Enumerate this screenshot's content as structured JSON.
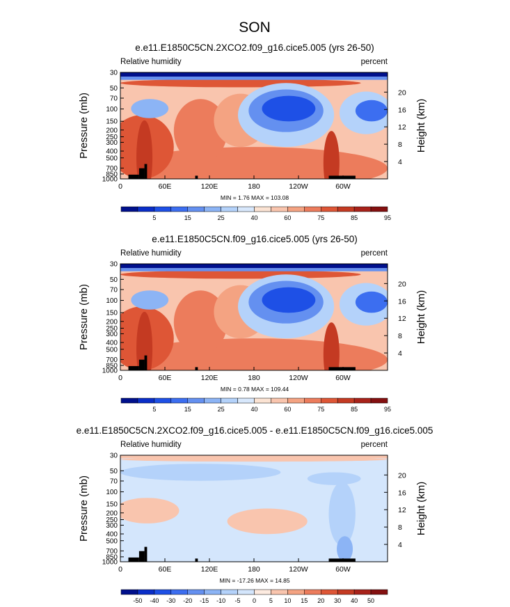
{
  "page": {
    "season_title": "SON"
  },
  "colors": {
    "abs_palette": [
      "#00108c",
      "#0a2ec8",
      "#1e50e6",
      "#3c6ef0",
      "#6490f0",
      "#8cb4f5",
      "#b4d2fa",
      "#d8e8fc",
      "#fbe3d3",
      "#f9c5ae",
      "#f4a382",
      "#ec7c5c",
      "#de5636",
      "#c43a22",
      "#a8221a",
      "#841010"
    ],
    "diff_palette": [
      "#00108c",
      "#0a2ec8",
      "#1e50e6",
      "#3c6ef0",
      "#6490f0",
      "#8cb4f5",
      "#b4d2fa",
      "#d4e6fc",
      "#fdebe0",
      "#f9c5ae",
      "#f4a382",
      "#ec7c5c",
      "#de5636",
      "#c43a22",
      "#a8221a",
      "#841010"
    ],
    "terrain": "#000000"
  },
  "chart_data": [
    {
      "type": "heatmap",
      "title": "e.e11.E1850C5CN.2XCO2.f09_g16.cice5.005 (yrs 26-50)",
      "left_label": "Relative humidity",
      "right_label": "percent",
      "ylabel": "Pressure (mb)",
      "y2label": "Height (km)",
      "xticks": [
        "0",
        "60E",
        "120E",
        "180",
        "120W",
        "60W"
      ],
      "yticks": [
        "30",
        "50",
        "70",
        "100",
        "150",
        "200",
        "250",
        "300",
        "400",
        "500",
        "700",
        "850",
        "1000"
      ],
      "y2ticks": [
        "20",
        "16",
        "12",
        "8",
        "4"
      ],
      "stats": "MIN =   1.76  MAX = 103.08",
      "colorbar_labels": [
        "5",
        "15",
        "25",
        "40",
        "60",
        "75",
        "85",
        "95"
      ],
      "min": 1.76,
      "max": 103.08
    },
    {
      "type": "heatmap",
      "title": "e.e11.E1850C5CN.f09_g16.cice5.005 (yrs 26-50)",
      "left_label": "Relative humidity",
      "right_label": "percent",
      "ylabel": "Pressure (mb)",
      "y2label": "Height (km)",
      "xticks": [
        "0",
        "60E",
        "120E",
        "180",
        "120W",
        "60W"
      ],
      "yticks": [
        "30",
        "50",
        "70",
        "100",
        "150",
        "200",
        "250",
        "300",
        "400",
        "500",
        "700",
        "850",
        "1000"
      ],
      "y2ticks": [
        "20",
        "16",
        "12",
        "8",
        "4"
      ],
      "stats": "MIN =   0.78  MAX = 109.44",
      "colorbar_labels": [
        "5",
        "15",
        "25",
        "40",
        "60",
        "75",
        "85",
        "95"
      ],
      "min": 0.78,
      "max": 109.44
    },
    {
      "type": "heatmap",
      "title": "e.e11.E1850C5CN.2XCO2.f09_g16.cice5.005 - e.e11.E1850C5CN.f09_g16.cice5.005",
      "left_label": "Relative humidity",
      "right_label": "percent",
      "ylabel": "Pressure (mb)",
      "y2label": "Height (km)",
      "xticks": [
        "0",
        "60E",
        "120E",
        "180",
        "120W",
        "60W"
      ],
      "yticks": [
        "30",
        "50",
        "70",
        "100",
        "150",
        "200",
        "250",
        "300",
        "400",
        "500",
        "700",
        "850",
        "1000"
      ],
      "y2ticks": [
        "20",
        "16",
        "12",
        "8",
        "4"
      ],
      "stats": "MIN = -17.26  MAX = 14.85",
      "colorbar_labels": [
        "-50",
        "-40",
        "-30",
        "-20",
        "-15",
        "-10",
        "-5",
        "0",
        "5",
        "10",
        "15",
        "20",
        "30",
        "40",
        "50"
      ],
      "min": -17.26,
      "max": 14.85
    }
  ]
}
